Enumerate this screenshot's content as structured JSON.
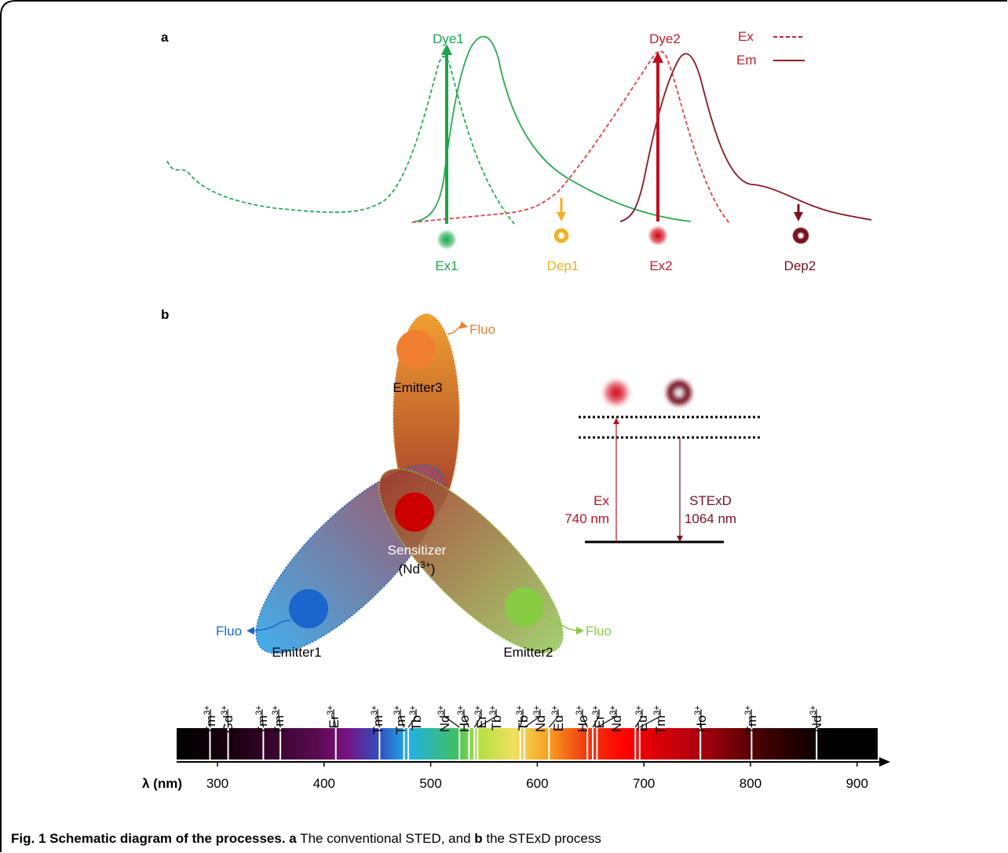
{
  "panel_a": {
    "label": "a",
    "dye1": "Dye1",
    "dye2": "Dye2",
    "legend_ex": "Ex",
    "legend_em": "Em",
    "beams": [
      "Ex1",
      "Dep1",
      "Ex2",
      "Dep2"
    ]
  },
  "panel_b": {
    "label": "b",
    "emitter3": "Emitter3",
    "emitter1": "Emitter1",
    "emitter2": "Emitter2",
    "fluo": [
      "Fluo",
      "Fluo",
      "Fluo"
    ],
    "sensitizer": {
      "name": "Sensitizer",
      "open": "(Nd",
      "charge": "3+",
      "close": ")"
    },
    "ex": {
      "label": "Ex",
      "wavelength": "740 nm"
    },
    "stexd": {
      "label": "STExD",
      "wavelength": "1064 nm"
    }
  },
  "spectrum": {
    "axis_label": "λ (nm)",
    "xlim": [
      261.7,
      919.3
    ],
    "xticks": [
      300,
      400,
      500,
      600,
      700,
      800,
      900
    ],
    "lines": [
      {
        "ion": "Tm",
        "charge": "3+",
        "wavelength": 293
      },
      {
        "ion": "Gd",
        "charge": "3+",
        "wavelength": 310
      },
      {
        "ion": "Tm",
        "charge": "3+",
        "wavelength": 343
      },
      {
        "ion": "Tm",
        "charge": "3+",
        "wavelength": 359
      },
      {
        "ion": "Er",
        "charge": "3+",
        "wavelength": 411
      },
      {
        "ion": "Tm",
        "charge": "3+",
        "wavelength": 452
      },
      {
        "ion": "Tm",
        "charge": "3+",
        "wavelength": 475
      },
      {
        "ion": "Tb",
        "charge": "3+",
        "wavelength": 479
      },
      {
        "ion": "Nd",
        "charge": "3+",
        "wavelength": 527
      },
      {
        "ion": "Ho",
        "charge": "3+",
        "wavelength": 536
      },
      {
        "ion": "Er",
        "charge": "3+",
        "wavelength": 541
      },
      {
        "ion": "Tb",
        "charge": "3+",
        "wavelength": 544
      },
      {
        "ion": "Tb",
        "charge": "3+",
        "wavelength": 584
      },
      {
        "ion": "Nd",
        "charge": "3+",
        "wavelength": 588
      },
      {
        "ion": "Eu",
        "charge": "3+",
        "wavelength": 611
      },
      {
        "ion": "Ho",
        "charge": "3+",
        "wavelength": 647
      },
      {
        "ion": "Er",
        "charge": "3+",
        "wavelength": 652
      },
      {
        "ion": "Nd",
        "charge": "3+",
        "wavelength": 656
      },
      {
        "ion": "Eu",
        "charge": "3+",
        "wavelength": 692
      },
      {
        "ion": "Tm",
        "charge": "3+",
        "wavelength": 696
      },
      {
        "ion": "Ho",
        "charge": "3+",
        "wavelength": 753
      },
      {
        "ion": "Tm",
        "charge": "3+",
        "wavelength": 801
      },
      {
        "ion": "Nd",
        "charge": "3+",
        "wavelength": 862
      }
    ]
  },
  "caption": {
    "label": "Fig. 1 Schematic diagram of the processes.",
    "a": "a",
    "a_text": " The conventional STED, and ",
    "b": "b",
    "b_text": " the STExD process"
  }
}
